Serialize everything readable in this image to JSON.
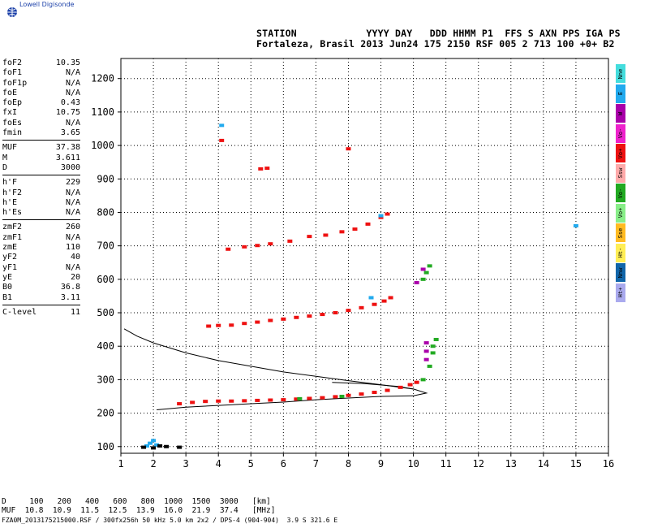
{
  "header": {
    "logo": "Lowell Digisonde",
    "line1": "STATION            YYYY DAY   DDD HHMM P1  FFS S AXN PPS IGA PS",
    "line2": "Fortaleza, Brasil 2013 Jun24 175 2150 RSF 005 2 713 100 +0+ B2"
  },
  "params": [
    {
      "k": "foF2",
      "v": "10.35"
    },
    {
      "k": "foF1",
      "v": "N/A"
    },
    {
      "k": "foF1p",
      "v": "N/A"
    },
    {
      "k": "foE",
      "v": "N/A"
    },
    {
      "k": "foEp",
      "v": "0.43"
    },
    {
      "k": "fxI",
      "v": "10.75"
    },
    {
      "k": "foEs",
      "v": "N/A"
    },
    {
      "k": "fmin",
      "v": "3.65"
    },
    {
      "sep": true
    },
    {
      "k": "MUF",
      "v": "37.38"
    },
    {
      "k": "M",
      "v": "3.611"
    },
    {
      "k": "D",
      "v": "3000"
    },
    {
      "sep": true
    },
    {
      "k": "h'F",
      "v": "229"
    },
    {
      "k": "h'F2",
      "v": "N/A"
    },
    {
      "k": "h'E",
      "v": "N/A"
    },
    {
      "k": "h'Es",
      "v": "N/A"
    },
    {
      "sep": true
    },
    {
      "k": "zmF2",
      "v": "260"
    },
    {
      "k": "zmF1",
      "v": "N/A"
    },
    {
      "k": "zmE",
      "v": "110"
    },
    {
      "k": "yF2",
      "v": "40"
    },
    {
      "k": "yF1",
      "v": "N/A"
    },
    {
      "k": "yE",
      "v": "20"
    },
    {
      "k": "B0",
      "v": "36.8"
    },
    {
      "k": "B1",
      "v": "3.11"
    },
    {
      "sep": true
    },
    {
      "k": "C-level",
      "v": "11"
    }
  ],
  "legend": [
    {
      "label": "Nne",
      "color": "#44dddd"
    },
    {
      "label": "E",
      "color": "#22aaee"
    },
    {
      "label": "W",
      "color": "#aa00aa"
    },
    {
      "label": "Vo-",
      "color": "#ee22cc"
    },
    {
      "label": "Vo+",
      "color": "#ee1111"
    },
    {
      "label": "Ssw",
      "color": "#ffaaaa"
    },
    {
      "label": "Vo-",
      "color": "#22aa22"
    },
    {
      "label": "Vo+",
      "color": "#88ee88"
    },
    {
      "label": "Sse",
      "color": "#ffbb22"
    },
    {
      "label": "Ht-",
      "color": "#ffee55"
    },
    {
      "label": "Nnw",
      "color": "#1166aa"
    },
    {
      "label": "Ht+",
      "color": "#aaaaee"
    }
  ],
  "footer": {
    "d_line": "D     100   200   400   600   800  1000  1500  3000   [km]",
    "muf_line": "MUF  10.8  10.9  11.5  12.5  13.9  16.0  21.9  37.4   [MHz]",
    "file_line": "FZA0M_2013175215000.RSF / 300fx256h 50 kHz 5.0 km 2x2 / DPS-4 (904-904)  3.9 S 321.6 E"
  },
  "chart_data": {
    "type": "scatter",
    "xlim": [
      1,
      16
    ],
    "ylim": [
      80,
      1260
    ],
    "x_ticks": [
      1,
      2,
      3,
      4,
      5,
      6,
      7,
      8,
      9,
      10,
      11,
      12,
      13,
      14,
      15,
      16
    ],
    "y_ticks": [
      100,
      200,
      300,
      400,
      500,
      600,
      700,
      800,
      900,
      1000,
      1100,
      1200
    ],
    "grid": true,
    "series": [
      {
        "color": "#ee1111",
        "points": [
          [
            2.8,
            228
          ],
          [
            3.2,
            232
          ],
          [
            3.6,
            235
          ],
          [
            4.0,
            236
          ],
          [
            4.4,
            236
          ],
          [
            4.8,
            237
          ],
          [
            5.2,
            238
          ],
          [
            5.6,
            239
          ],
          [
            6.0,
            240
          ],
          [
            6.4,
            242
          ],
          [
            6.8,
            244
          ],
          [
            7.2,
            246
          ],
          [
            7.6,
            249
          ],
          [
            8.0,
            253
          ],
          [
            8.4,
            257
          ],
          [
            8.8,
            262
          ],
          [
            9.2,
            268
          ],
          [
            9.6,
            277
          ],
          [
            9.9,
            285
          ],
          [
            10.1,
            292
          ]
        ]
      },
      {
        "color": "#ee1111",
        "points": [
          [
            3.7,
            460
          ],
          [
            4.0,
            462
          ],
          [
            4.4,
            463
          ],
          [
            4.8,
            468
          ],
          [
            5.2,
            472
          ],
          [
            5.6,
            477
          ],
          [
            6.0,
            481
          ],
          [
            6.4,
            486
          ],
          [
            6.8,
            490
          ],
          [
            7.2,
            495
          ],
          [
            7.6,
            500
          ],
          [
            8.0,
            507
          ],
          [
            8.4,
            515
          ],
          [
            8.8,
            525
          ],
          [
            9.1,
            535
          ],
          [
            9.3,
            545
          ]
        ]
      },
      {
        "color": "#ee1111",
        "points": [
          [
            4.3,
            690
          ],
          [
            4.8,
            697
          ],
          [
            5.2,
            701
          ],
          [
            5.6,
            706
          ],
          [
            6.2,
            714
          ],
          [
            6.8,
            728
          ],
          [
            7.3,
            732
          ],
          [
            7.8,
            742
          ],
          [
            8.2,
            750
          ],
          [
            8.6,
            765
          ],
          [
            9.0,
            785
          ],
          [
            9.2,
            795
          ]
        ]
      },
      {
        "color": "#ee1111",
        "points": [
          [
            5.3,
            930
          ],
          [
            5.5,
            932
          ],
          [
            8.0,
            990
          ],
          [
            4.1,
            1015
          ]
        ]
      },
      {
        "color": "#22aa22",
        "points": [
          [
            10.6,
            380
          ],
          [
            10.6,
            400
          ],
          [
            10.7,
            420
          ],
          [
            10.3,
            300
          ],
          [
            10.5,
            340
          ],
          [
            10.3,
            600
          ],
          [
            10.4,
            620
          ],
          [
            10.5,
            640
          ],
          [
            7.8,
            250
          ],
          [
            6.5,
            243
          ]
        ]
      },
      {
        "color": "#aa00aa",
        "points": [
          [
            10.4,
            360
          ],
          [
            10.4,
            385
          ],
          [
            10.4,
            410
          ],
          [
            10.3,
            630
          ],
          [
            10.1,
            590
          ]
        ]
      },
      {
        "color": "#22aaee",
        "points": [
          [
            1.8,
            102
          ],
          [
            1.9,
            110
          ],
          [
            2.0,
            118
          ],
          [
            2.1,
            105
          ],
          [
            4.1,
            1060
          ],
          [
            15.0,
            760
          ],
          [
            8.7,
            545
          ],
          [
            9.0,
            790
          ]
        ]
      },
      {
        "color": "#000000",
        "points": [
          [
            1.7,
            98
          ],
          [
            2.0,
            96
          ],
          [
            2.2,
            102
          ],
          [
            2.4,
            100
          ],
          [
            2.8,
            98
          ]
        ]
      }
    ],
    "curves": [
      {
        "color": "#000000",
        "points": [
          [
            1.1,
            452
          ],
          [
            1.5,
            430
          ],
          [
            2.0,
            410
          ],
          [
            3.0,
            380
          ],
          [
            4.0,
            357
          ],
          [
            5.0,
            340
          ],
          [
            6.0,
            323
          ],
          [
            7.0,
            310
          ],
          [
            8.0,
            297
          ],
          [
            9.0,
            285
          ],
          [
            10.0,
            272
          ],
          [
            10.4,
            260
          ],
          [
            10.0,
            252
          ],
          [
            9.0,
            250
          ],
          [
            8.0,
            245
          ],
          [
            7.0,
            240
          ],
          [
            6.0,
            233
          ],
          [
            5.0,
            228
          ],
          [
            4.0,
            223
          ],
          [
            3.0,
            218
          ],
          [
            2.1,
            210
          ]
        ]
      },
      {
        "color": "#000000",
        "points": [
          [
            7.5,
            292
          ],
          [
            8.5,
            288
          ],
          [
            9.5,
            280
          ],
          [
            10.0,
            272
          ]
        ]
      }
    ]
  }
}
